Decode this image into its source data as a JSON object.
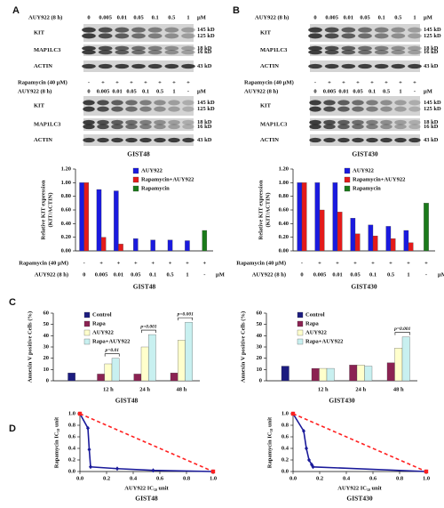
{
  "panels": [
    "A",
    "B",
    "C",
    "D"
  ],
  "blots": [
    {
      "top": {
        "header": "AUY922 (8 h)",
        "doses": [
          "0",
          "0.005",
          "0.01",
          "0.05",
          "0.1",
          "0.5",
          "1"
        ],
        "unit": "µM",
        "rows": [
          {
            "label": "KIT",
            "markers": [
              "145 kD",
              "125 kD"
            ]
          },
          {
            "label": "MAP1LC3",
            "markers": [
              "18 kD",
              "16 kD"
            ]
          },
          {
            "label": "ACTIN",
            "markers": [
              "43 kD"
            ]
          }
        ]
      },
      "bottom": {
        "rapamycin_label": "Rapamycin (40 µM)",
        "rapamycin": [
          "-",
          "+",
          "+",
          "+",
          "+",
          "+",
          "+",
          "+"
        ],
        "header": "AUY922 (8 h)",
        "doses": [
          "0",
          "0.005",
          "0.01",
          "0.05",
          "0.1",
          "0.5",
          "1",
          "-"
        ],
        "unit": "µM",
        "rows": [
          {
            "label": "KIT",
            "markers": [
              "145 kD",
              "125 kD"
            ]
          },
          {
            "label": "MAP1LC3",
            "markers": [
              "18 kD",
              "16 kD"
            ]
          },
          {
            "label": "ACTIN",
            "markers": [
              "43 kD"
            ]
          }
        ]
      },
      "cell": "GIST48"
    },
    {
      "top": {
        "header": "AUY922 (8 h)",
        "doses": [
          "0",
          "0.005",
          "0.01",
          "0.05",
          "0.1",
          "0.5",
          "1"
        ],
        "unit": "µM",
        "rows": [
          {
            "label": "KIT",
            "markers": [
              "145 kD",
              "125 kD"
            ]
          },
          {
            "label": "MAP1LC3",
            "markers": [
              "18 kD",
              "16 kD"
            ]
          },
          {
            "label": "ACTIN",
            "markers": [
              "43 kD"
            ]
          }
        ]
      },
      "bottom": {
        "rapamycin_label": "Rapamycin (40 µM)",
        "rapamycin": [
          "-",
          "+",
          "+",
          "+",
          "+",
          "+",
          "+",
          "+"
        ],
        "header": "AUY922 (8 h)",
        "doses": [
          "0",
          "0.005",
          "0.01",
          "0.05",
          "0.1",
          "0.5",
          "1",
          "-"
        ],
        "unit": "µM",
        "rows": [
          {
            "label": "KIT",
            "markers": [
              "145 kD",
              "125 kD"
            ]
          },
          {
            "label": "MAP1LC3",
            "markers": [
              "18 kD",
              "16 kD"
            ]
          },
          {
            "label": "ACTIN",
            "markers": [
              "43 kD"
            ]
          }
        ]
      },
      "cell": "GIST430"
    }
  ],
  "chart_data": [
    {
      "type": "bar",
      "ylabel": [
        "Relative KIT expression",
        "(KIT/ACTIN)"
      ],
      "xlabel": "GIST48",
      "categories": [
        "0",
        "0.005",
        "0.01",
        "0.05",
        "0.1",
        "0.5",
        "1",
        "-"
      ],
      "category_label": "AUY922 (8 h)",
      "unit": "µM",
      "rapamycin_label": "Rapamycin (40 µM)",
      "rapamycin": [
        "-",
        "+",
        "+",
        "+",
        "+",
        "+",
        "+",
        "+"
      ],
      "series": [
        {
          "name": "AUY922",
          "color": "#1a1adf",
          "values": [
            1.0,
            0.9,
            0.88,
            0.18,
            0.16,
            0.16,
            0.15,
            null
          ]
        },
        {
          "name": "Rapamycin+AUY922",
          "color": "#e41a1a",
          "values": [
            1.0,
            0.2,
            0.1,
            null,
            null,
            null,
            null,
            null
          ]
        },
        {
          "name": "Rapamycin",
          "color": "#1a7a1a",
          "values": [
            null,
            null,
            null,
            null,
            null,
            null,
            null,
            0.3
          ]
        }
      ],
      "ylim": [
        0,
        1.2
      ],
      "yticks": [
        {
          "value": 0,
          "label": "0.00"
        },
        {
          "value": 0.2,
          "label": "0.20"
        },
        {
          "value": 0.4,
          "label": "0.40"
        },
        {
          "value": 0.6,
          "label": "0.60"
        },
        {
          "value": 0.8,
          "label": "0.80"
        },
        {
          "value": 1.0,
          "label": "1.00"
        },
        {
          "value": 1.2,
          "label": "1.20"
        }
      ]
    },
    {
      "type": "bar",
      "ylabel": [
        "Relative KIT expression",
        "(KIT/ACTIN)"
      ],
      "xlabel": "GIST430",
      "categories": [
        "0",
        "0.005",
        "0.01",
        "0.05",
        "0.1",
        "0.5",
        "1",
        "-"
      ],
      "category_label": "AUY922 (8 h)",
      "unit": "µM",
      "rapamycin_label": "Rapamycin (40 µM)",
      "rapamycin": [
        "-",
        "+",
        "+",
        "+",
        "+",
        "+",
        "+",
        "+"
      ],
      "series": [
        {
          "name": "AUY922",
          "color": "#1a1adf",
          "values": [
            1.0,
            1.0,
            1.0,
            0.48,
            0.38,
            0.36,
            0.3,
            null
          ]
        },
        {
          "name": "Rapamycin+AUY922",
          "color": "#e41a1a",
          "values": [
            1.0,
            0.6,
            0.57,
            0.25,
            0.22,
            0.18,
            0.12,
            null
          ]
        },
        {
          "name": "Rapamycin",
          "color": "#1a7a1a",
          "values": [
            null,
            null,
            null,
            null,
            null,
            null,
            null,
            0.7
          ]
        }
      ],
      "ylim": [
        0,
        1.2
      ],
      "yticks": [
        {
          "value": 0,
          "label": "0.00"
        },
        {
          "value": 0.2,
          "label": "0.20"
        },
        {
          "value": 0.4,
          "label": "0.40"
        },
        {
          "value": 0.6,
          "label": "0.60"
        },
        {
          "value": 0.8,
          "label": "0.80"
        },
        {
          "value": 1.0,
          "label": "1.00"
        },
        {
          "value": 1.2,
          "label": "1.20"
        }
      ]
    },
    {
      "type": "bar",
      "ylabel": "Annexin V positive Cells (%)",
      "xlabel": "GIST48",
      "categories": [
        null,
        "12 h",
        "24 h",
        "48 h"
      ],
      "series": [
        {
          "name": "Control",
          "color": "#1c1c80",
          "values": [
            7,
            null,
            null,
            null
          ]
        },
        {
          "name": "Rapa",
          "color": "#8b2252",
          "values": [
            null,
            6,
            6,
            7
          ]
        },
        {
          "name": "AUY922",
          "color": "#ffffcc",
          "values": [
            null,
            15,
            30,
            36
          ]
        },
        {
          "name": "Rapa+AUY922",
          "color": "#c8f0f0",
          "values": [
            null,
            20,
            41,
            52
          ]
        }
      ],
      "ylim": [
        0,
        60
      ],
      "yticks": [
        0,
        10,
        20,
        30,
        40,
        50,
        60
      ],
      "annotations": [
        {
          "text": "p=0.01",
          "category": 1
        },
        {
          "text": "p=0.001",
          "category": 2
        },
        {
          "text": "p=0.001",
          "category": 3
        }
      ]
    },
    {
      "type": "bar",
      "ylabel": "Annexin V positive Cells (%)",
      "xlabel": "GIST430",
      "categories": [
        null,
        "12 h",
        "24 h",
        "48 h"
      ],
      "series": [
        {
          "name": "Control",
          "color": "#1c1c80",
          "values": [
            13,
            null,
            null,
            null
          ]
        },
        {
          "name": "Rapa",
          "color": "#8b2252",
          "values": [
            null,
            11,
            14,
            16
          ]
        },
        {
          "name": "AUY922",
          "color": "#ffffcc",
          "values": [
            null,
            11,
            14,
            29
          ]
        },
        {
          "name": "Rapa+AUY922",
          "color": "#c8f0f0",
          "values": [
            null,
            11,
            13,
            39
          ]
        }
      ],
      "ylim": [
        0,
        60
      ],
      "yticks": [
        0,
        10,
        20,
        30,
        40,
        50,
        60
      ],
      "annotations": [
        {
          "text": "p=0.001",
          "category": 3
        }
      ]
    },
    {
      "type": "line",
      "ylabel": "Rapamycin IC₅₀ unit",
      "xlabel": "AUY922 IC₅₀ unit",
      "cell": "GIST48",
      "series": [
        {
          "color": "#1a1a9a",
          "marker": "diamond",
          "x": [
            0,
            0.06,
            0.07,
            0.08,
            0.28,
            0.55,
            1.0
          ],
          "values": [
            1.0,
            0.75,
            0.38,
            0.08,
            0.05,
            0.02,
            0
          ]
        },
        {
          "color": "#ff2020",
          "marker": "square",
          "dashed": true,
          "x": [
            0,
            1.0
          ],
          "values": [
            1.0,
            0
          ]
        }
      ],
      "xlim": [
        0,
        1
      ],
      "ylim": [
        0,
        1
      ],
      "xticks": [
        {
          "value": 0,
          "label": "0.0"
        },
        {
          "value": 0.2,
          "label": "0.2"
        },
        {
          "value": 0.4,
          "label": "0.4"
        },
        {
          "value": 0.6,
          "label": "0.6"
        },
        {
          "value": 0.8,
          "label": "0.8"
        },
        {
          "value": 1,
          "label": "1.0"
        }
      ],
      "yticks": [
        {
          "value": 0,
          "label": "0.0"
        },
        {
          "value": 0.2,
          "label": "0.2"
        },
        {
          "value": 0.4,
          "label": "0.4"
        },
        {
          "value": 0.6,
          "label": "0.6"
        },
        {
          "value": 0.8,
          "label": "0.8"
        },
        {
          "value": 1,
          "label": "1.0"
        }
      ]
    },
    {
      "type": "line",
      "ylabel": "Rapamycin IC₅₀ unit",
      "xlabel": "AUY922 IC₅₀ unit",
      "cell": "GIST430",
      "series": [
        {
          "color": "#1a1a9a",
          "marker": "diamond",
          "x": [
            0,
            0.08,
            0.1,
            0.12,
            0.14,
            0.15,
            1.0
          ],
          "values": [
            1.0,
            0.7,
            0.4,
            0.2,
            0.12,
            0.08,
            0
          ]
        },
        {
          "color": "#ff2020",
          "marker": "square",
          "dashed": true,
          "x": [
            0,
            1.0
          ],
          "values": [
            1.0,
            0
          ]
        }
      ],
      "xlim": [
        0,
        1
      ],
      "ylim": [
        0,
        1
      ],
      "xticks": [
        {
          "value": 0,
          "label": "0.0"
        },
        {
          "value": 0.2,
          "label": "0.2"
        },
        {
          "value": 0.4,
          "label": "0.4"
        },
        {
          "value": 0.6,
          "label": "0.6"
        },
        {
          "value": 0.8,
          "label": "0.8"
        },
        {
          "value": 1,
          "label": "1.0"
        }
      ],
      "yticks": [
        {
          "value": 0,
          "label": "0.0"
        },
        {
          "value": 0.2,
          "label": "0.2"
        },
        {
          "value": 0.4,
          "label": "0.4"
        },
        {
          "value": 0.6,
          "label": "0.6"
        },
        {
          "value": 0.8,
          "label": "0.8"
        },
        {
          "value": 1,
          "label": "1.0"
        }
      ]
    }
  ]
}
